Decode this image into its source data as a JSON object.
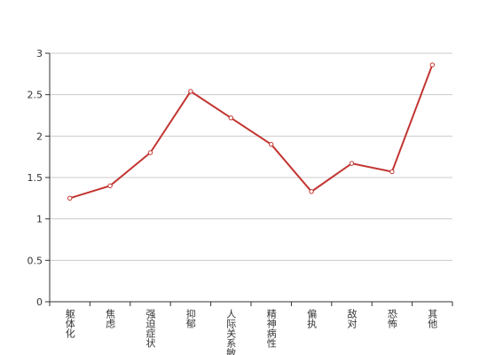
{
  "chart_data": {
    "type": "line",
    "categories": [
      "躯体化",
      "焦虑",
      "强迫症状",
      "抑郁",
      "人际关系敏感",
      "精神病性",
      "偏执",
      "敌对",
      "恐怖",
      "其他"
    ],
    "values": [
      1.25,
      1.4,
      1.8,
      2.54,
      2.22,
      1.9,
      1.33,
      1.67,
      1.57,
      2.86
    ],
    "color": "#c23531",
    "ylim": [
      0,
      3
    ],
    "yticks": [
      0,
      0.5,
      1,
      1.5,
      2,
      2.5,
      3
    ],
    "grid": true
  }
}
